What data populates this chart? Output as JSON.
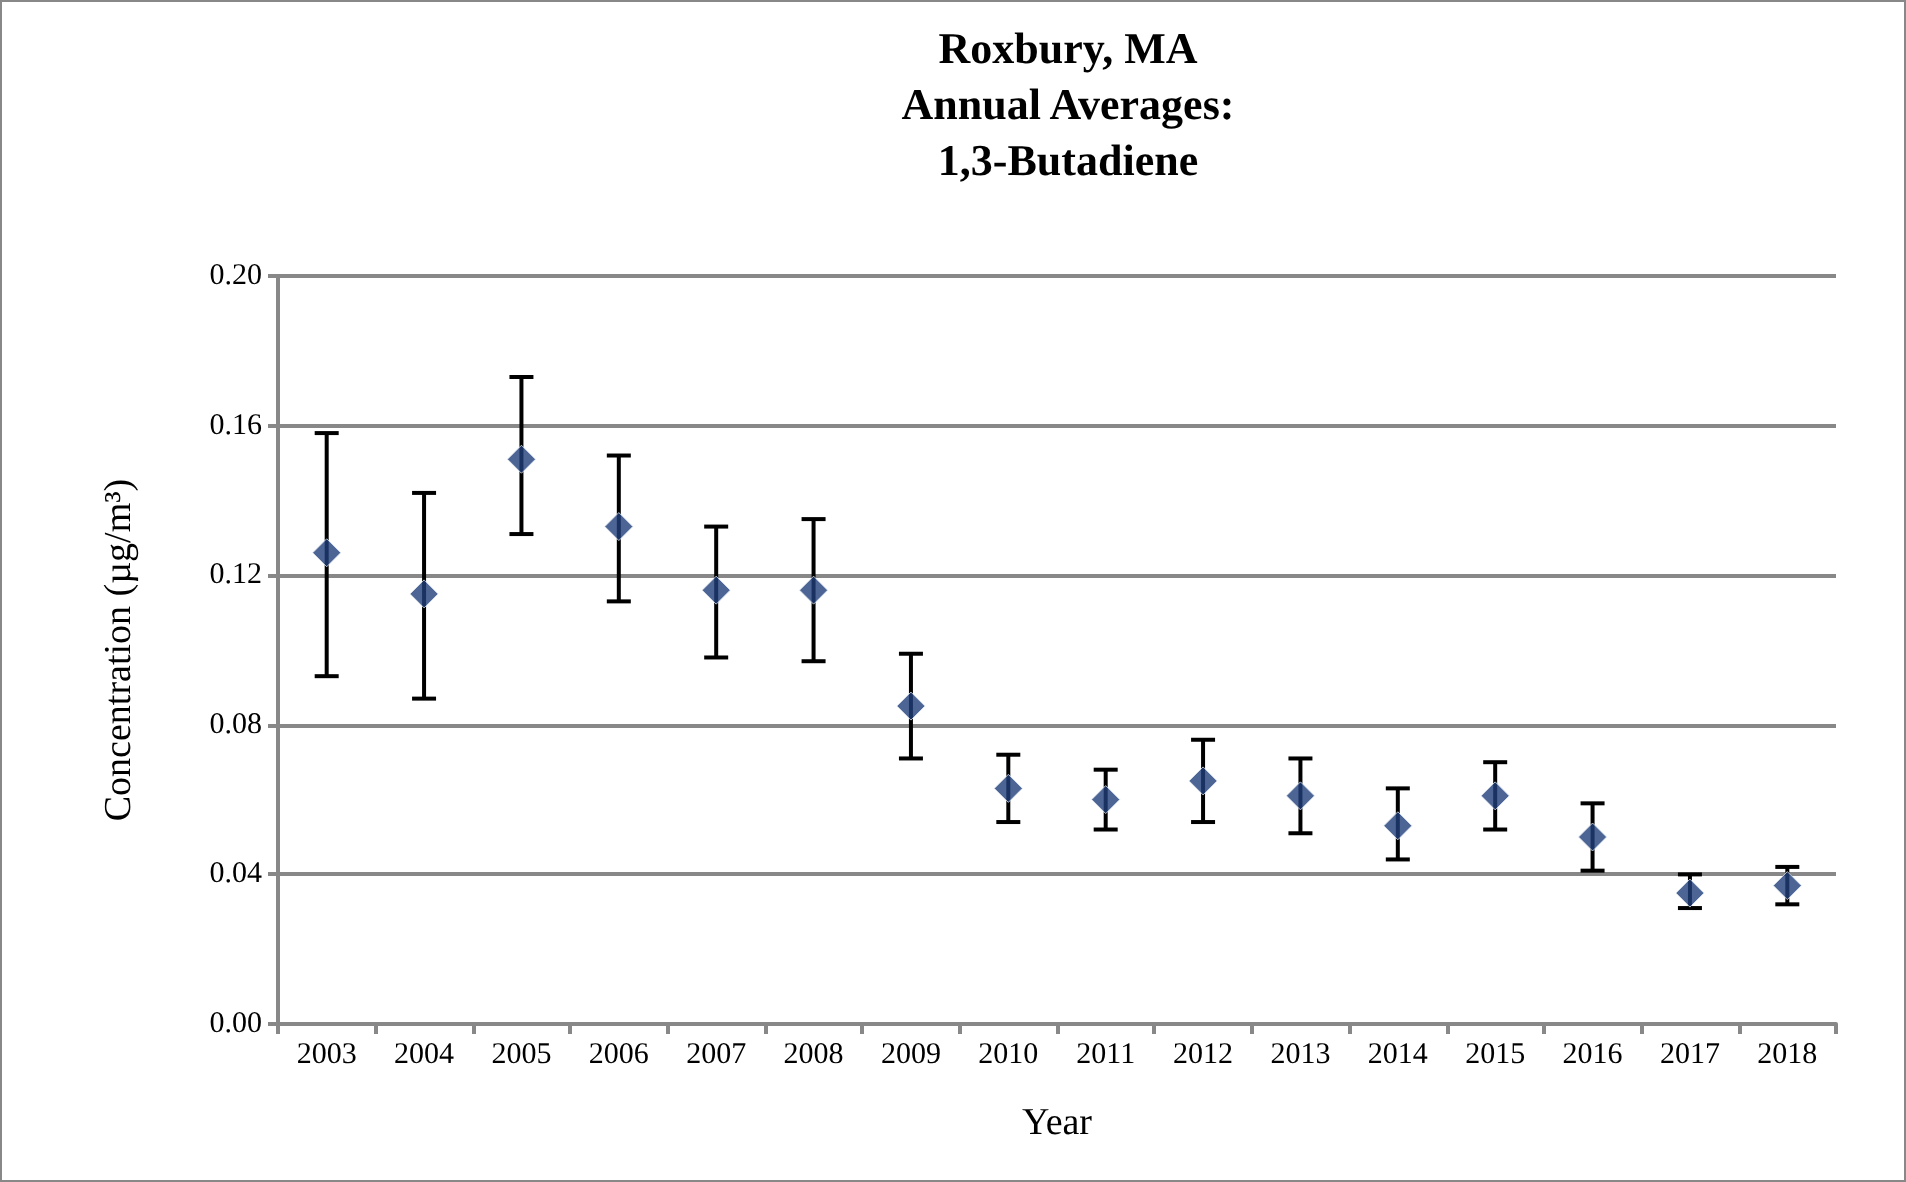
{
  "chart_data": {
    "type": "scatter",
    "title": "Roxbury, MA\nAnnual Averages:\n1,3-Butadiene",
    "xlabel": "Year",
    "ylabel": "Concentration (µg/m³)",
    "categories": [
      "2003",
      "2004",
      "2005",
      "2006",
      "2007",
      "2008",
      "2009",
      "2010",
      "2011",
      "2012",
      "2013",
      "2014",
      "2015",
      "2016",
      "2017",
      "2018"
    ],
    "values": [
      0.126,
      0.115,
      0.151,
      0.133,
      0.116,
      0.116,
      0.085,
      0.063,
      0.06,
      0.065,
      0.061,
      0.053,
      0.061,
      0.05,
      0.035,
      0.037
    ],
    "errors": [
      [
        0.093,
        0.158
      ],
      [
        0.087,
        0.142
      ],
      [
        0.131,
        0.173
      ],
      [
        0.113,
        0.152
      ],
      [
        0.098,
        0.133
      ],
      [
        0.097,
        0.135
      ],
      [
        0.071,
        0.099
      ],
      [
        0.054,
        0.072
      ],
      [
        0.052,
        0.068
      ],
      [
        0.054,
        0.076
      ],
      [
        0.051,
        0.071
      ],
      [
        0.044,
        0.063
      ],
      [
        0.052,
        0.07
      ],
      [
        0.041,
        0.059
      ],
      [
        0.031,
        0.04
      ],
      [
        0.032,
        0.042
      ]
    ],
    "color": "#1f3f7a",
    "marker": "diamond",
    "ylim": [
      0,
      0.2
    ],
    "yticks": [
      {
        "value": 0,
        "label": "0.00"
      },
      0.04,
      0.08,
      0.12,
      0.16,
      {
        "value": 0.2,
        "label": "0.20"
      }
    ],
    "grid": "y"
  }
}
